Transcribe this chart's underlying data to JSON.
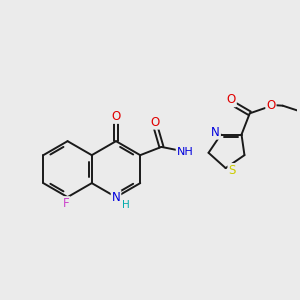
{
  "background_color": "#ebebeb",
  "bond_color": "#1a1a1a",
  "atom_colors": {
    "O": "#e00000",
    "N": "#0000dd",
    "S": "#cccc00",
    "F": "#cc44cc",
    "H_color": "#00aaaa"
  },
  "figsize": [
    3.0,
    3.0
  ],
  "dpi": 100
}
